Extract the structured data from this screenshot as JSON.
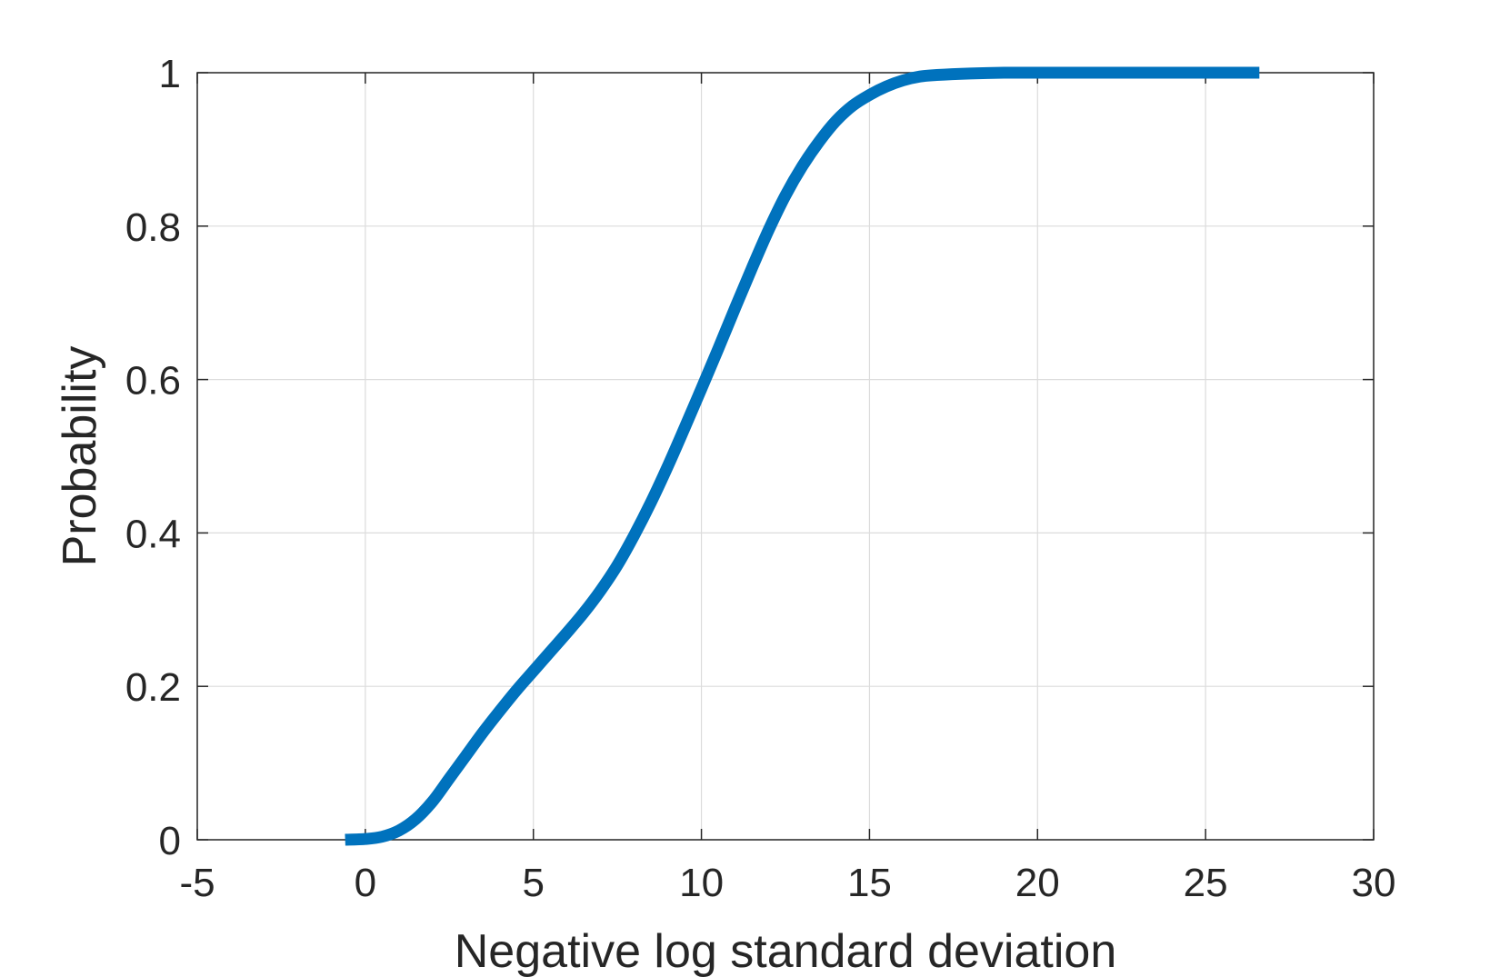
{
  "chart_data": {
    "type": "line",
    "title": "",
    "xlabel": "Negative log standard deviation",
    "ylabel": "Probability",
    "xlim": [
      -5,
      30
    ],
    "ylim": [
      0,
      1
    ],
    "x_ticks": [
      -5,
      0,
      5,
      10,
      15,
      20,
      25,
      30
    ],
    "y_ticks": [
      0,
      0.2,
      0.4,
      0.6,
      0.8,
      1
    ],
    "x_tick_labels": [
      "-5",
      "0",
      "5",
      "10",
      "15",
      "20",
      "25",
      "30"
    ],
    "y_tick_labels": [
      "0",
      "0.2",
      "0.4",
      "0.6",
      "0.8",
      "1"
    ],
    "grid": true,
    "legend": "none",
    "series": [
      {
        "color": "#0072BD",
        "x": [
          -0.6,
          0,
          0.5,
          1,
          1.5,
          2,
          2.5,
          3,
          3.5,
          4,
          4.5,
          5,
          5.5,
          6,
          6.5,
          7,
          7.5,
          8,
          8.5,
          9,
          9.5,
          10,
          10.5,
          11,
          11.5,
          12,
          12.5,
          13,
          13.5,
          14,
          14.5,
          15,
          15.5,
          16,
          16.5,
          17,
          18,
          19,
          20,
          22,
          24,
          26.6
        ],
        "y": [
          0.0,
          0.001,
          0.004,
          0.012,
          0.027,
          0.05,
          0.08,
          0.11,
          0.14,
          0.168,
          0.195,
          0.22,
          0.245,
          0.27,
          0.296,
          0.325,
          0.358,
          0.397,
          0.44,
          0.487,
          0.537,
          0.588,
          0.64,
          0.693,
          0.745,
          0.795,
          0.84,
          0.878,
          0.91,
          0.937,
          0.957,
          0.971,
          0.982,
          0.99,
          0.995,
          0.997,
          0.999,
          1.0,
          1.0,
          1.0,
          1.0,
          1.0
        ]
      }
    ]
  }
}
